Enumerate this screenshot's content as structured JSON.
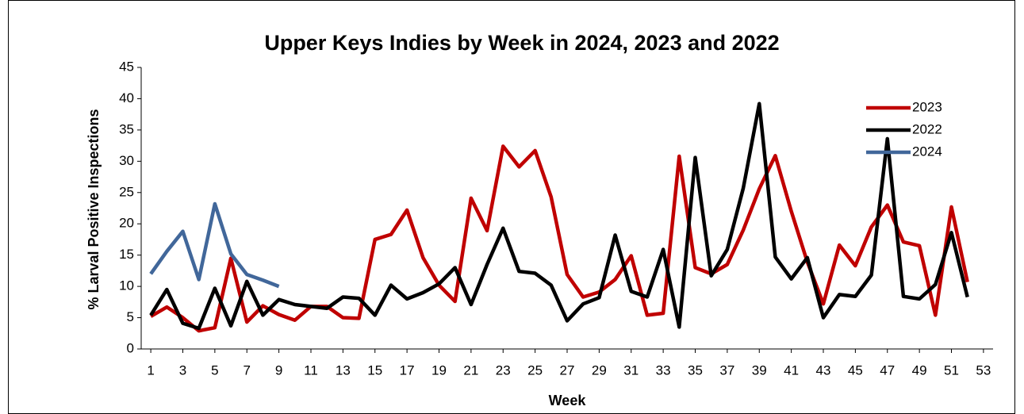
{
  "chart_data": {
    "type": "line",
    "title": "Upper Keys Indies by Week in 2024, 2023 and 2022",
    "x_label": "Week",
    "y_label": "% Larval Positive Inspections",
    "x": [
      1,
      2,
      3,
      4,
      5,
      6,
      7,
      8,
      9,
      10,
      11,
      12,
      13,
      14,
      15,
      16,
      17,
      18,
      19,
      20,
      21,
      22,
      23,
      24,
      25,
      26,
      27,
      28,
      29,
      30,
      31,
      32,
      33,
      34,
      35,
      36,
      37,
      38,
      39,
      40,
      41,
      42,
      43,
      44,
      45,
      46,
      47,
      48,
      49,
      50,
      51,
      52
    ],
    "series": [
      {
        "name": "2023",
        "color": "#c00000",
        "values": [
          5.2,
          6.7,
          5.0,
          2.9,
          3.4,
          14.5,
          4.3,
          6.9,
          5.5,
          4.6,
          6.8,
          6.8,
          5.0,
          4.9,
          17.5,
          18.3,
          22.2,
          14.6,
          10.2,
          7.6,
          24.1,
          18.9,
          32.4,
          29.1,
          31.7,
          24.3,
          11.9,
          8.3,
          9.1,
          11.1,
          14.9,
          5.4,
          5.7,
          30.8,
          13.0,
          12.0,
          13.5,
          19.0,
          25.6,
          30.9,
          22.0,
          13.9,
          7.2,
          16.6,
          13.3,
          19.5,
          23.0,
          17.1,
          16.5,
          5.4,
          22.7,
          10.7
        ]
      },
      {
        "name": "2022",
        "color": "#000000",
        "values": [
          5.4,
          9.5,
          4.1,
          3.3,
          9.7,
          3.7,
          10.8,
          5.4,
          7.9,
          7.1,
          6.8,
          6.5,
          8.3,
          8.1,
          5.4,
          10.2,
          8.0,
          9.0,
          10.4,
          13.0,
          7.1,
          13.5,
          19.3,
          12.4,
          12.1,
          10.2,
          4.5,
          7.2,
          8.2,
          18.2,
          9.2,
          8.3,
          15.9,
          3.5,
          30.6,
          11.7,
          15.9,
          25.7,
          39.2,
          14.7,
          11.2,
          14.6,
          5.0,
          8.7,
          8.4,
          11.8,
          33.6,
          8.4,
          8.0,
          10.3,
          18.6,
          8.3
        ]
      },
      {
        "name": "2024",
        "color": "#41679a",
        "values": [
          12.0,
          15.6,
          18.8,
          11.1,
          23.2,
          15.2,
          11.9,
          11.0,
          10.0,
          null,
          null,
          null,
          null,
          null,
          null,
          null,
          null,
          null,
          null,
          null,
          null,
          null,
          null,
          null,
          null,
          null,
          null,
          null,
          null,
          null,
          null,
          null,
          null,
          null,
          null,
          null,
          null,
          null,
          null,
          null,
          null,
          null,
          null,
          null,
          null,
          null,
          null,
          null,
          null,
          null,
          null,
          null
        ]
      }
    ],
    "xlim": [
      0.4,
      53.6
    ],
    "xticks": [
      1,
      3,
      5,
      7,
      9,
      11,
      13,
      15,
      17,
      19,
      21,
      23,
      25,
      27,
      29,
      31,
      33,
      35,
      37,
      39,
      41,
      43,
      45,
      47,
      49,
      51,
      53
    ],
    "ylim": [
      0,
      45
    ],
    "yticks": [
      0,
      5,
      10,
      15,
      20,
      25,
      30,
      35,
      40,
      45
    ],
    "grid": false,
    "legend": "top-right"
  }
}
